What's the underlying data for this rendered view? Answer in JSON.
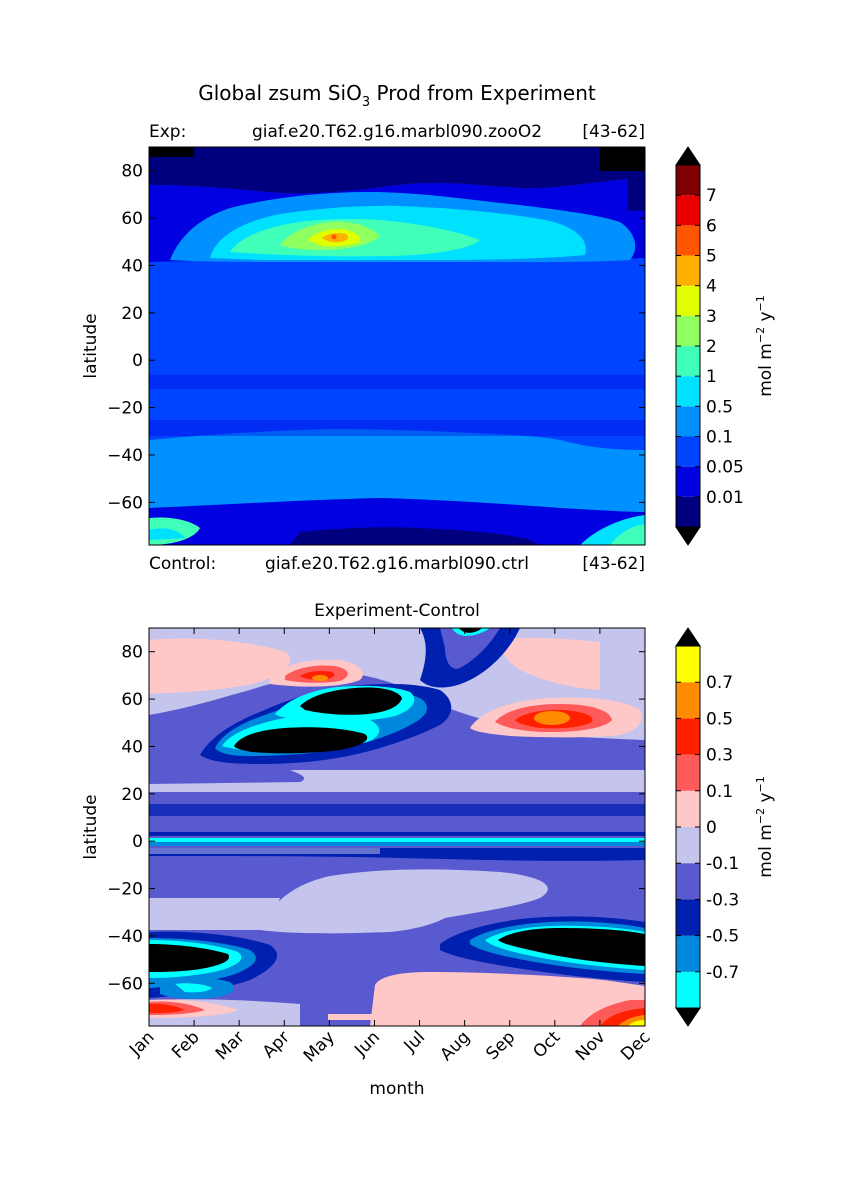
{
  "figure": {
    "title_prefix": "Global zsum SiO",
    "title_sub": "3",
    "title_suffix": " Prod from Experiment",
    "exp_label": "Exp:",
    "exp_name": "giaf.e20.T62.g16.marbl090.zooO2",
    "exp_years": "[43-62]",
    "ctrl_label": "Control:",
    "ctrl_name": "giaf.e20.T62.g16.marbl090.ctrl",
    "ctrl_years": "[43-62]"
  },
  "chart_data": [
    {
      "type": "heatmap",
      "title": "",
      "xlabel": "",
      "ylabel": "latitude",
      "xlim": [
        0,
        11
      ],
      "ylim": [
        -78,
        90
      ],
      "yticks": [
        "80",
        "60",
        "40",
        "20",
        "0",
        "−20",
        "−40",
        "−60"
      ],
      "ytick_values": [
        80,
        60,
        40,
        20,
        0,
        -20,
        -40,
        -60
      ],
      "colorbar": {
        "label": "mol m",
        "label_exp": "−2",
        "label_unit": " y",
        "label_unit_exp": "−1",
        "levels": [
          "0.01",
          "0.05",
          "0.1",
          "0.5",
          "1",
          "2",
          "3",
          "4",
          "5",
          "6",
          "7"
        ],
        "colors": [
          "#00007f",
          "#0000e0",
          "#0044ff",
          "#0090ff",
          "#00e0ff",
          "#40ffb8",
          "#90ff60",
          "#e0ff00",
          "#ffb000",
          "#ff5500",
          "#e80000",
          "#7f0000"
        ],
        "extend": "both"
      },
      "features": [
        {
          "kind": "high_band",
          "lat": 52,
          "month": 4.6,
          "peak": 5.5
        },
        {
          "kind": "low_cap",
          "lat": 86,
          "months": [
            0,
            1
          ]
        },
        {
          "kind": "low_cap",
          "lat": 86,
          "months": [
            10,
            11
          ]
        },
        {
          "kind": "southern_band",
          "lat": -62,
          "value": 0.1
        }
      ]
    },
    {
      "type": "heatmap",
      "title": "Experiment-Control",
      "xlabel": "month",
      "ylabel": "latitude",
      "xlim": [
        0,
        11
      ],
      "ylim": [
        -78,
        90
      ],
      "xticks": [
        "Jan",
        "Feb",
        "Mar",
        "Apr",
        "May",
        "Jun",
        "Jul",
        "Aug",
        "Sep",
        "Oct",
        "Nov",
        "Dec"
      ],
      "yticks": [
        "80",
        "60",
        "40",
        "20",
        "0",
        "−20",
        "−40",
        "−60"
      ],
      "ytick_values": [
        80,
        60,
        40,
        20,
        0,
        -20,
        -40,
        -60
      ],
      "colorbar": {
        "label": "mol m",
        "label_exp": "−2",
        "label_unit": " y",
        "label_unit_exp": "−1",
        "levels": [
          "-0.7",
          "-0.5",
          "-0.3",
          "-0.1",
          "0",
          "0.1",
          "0.3",
          "0.5",
          "0.7"
        ],
        "colors": [
          "#00ffff",
          "#0088dd",
          "#0020b0",
          "#5a5ad0",
          "#c4c4ec",
          "#ffc8c8",
          "#ff5a5a",
          "#ff2000",
          "#ff8c00",
          "#ffff00"
        ],
        "extend": "both"
      },
      "features": [
        {
          "kind": "negative_min",
          "lat": 40,
          "month": 4.0,
          "value": -0.9
        },
        {
          "kind": "negative_min",
          "lat": 60,
          "month": 5.5,
          "value": -0.9
        },
        {
          "kind": "negative_min",
          "lat": -50,
          "month": 0.8,
          "value": -0.9
        },
        {
          "kind": "negative_min",
          "lat": -45,
          "month": 9.8,
          "value": -0.9
        },
        {
          "kind": "positive_max",
          "lat": 52,
          "month": 9.3,
          "value": 0.6
        },
        {
          "kind": "positive_max",
          "lat": 68,
          "month": 4.3,
          "value": 0.6
        }
      ]
    }
  ]
}
